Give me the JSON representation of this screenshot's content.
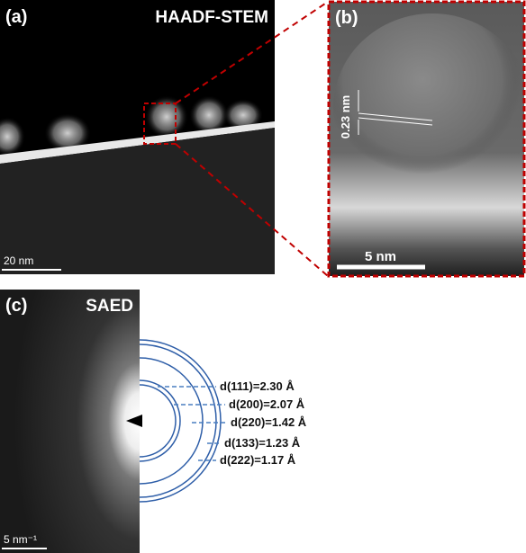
{
  "panels": {
    "a": {
      "label": "(a)",
      "title": "HAADF-STEM",
      "scale_bar": "20 nm"
    },
    "b": {
      "label": "(b)",
      "annotation": "0.23 nm",
      "scale_bar": "5 nm"
    },
    "c": {
      "label": "(c)",
      "title": "SAED",
      "scale_bar": "5 nm⁻¹",
      "rings": [
        "d(111)=2.30 Å",
        "d(200)=2.07 Å",
        "d(220)=1.42 Å",
        "d(133)=1.23 Å",
        "d(222)=1.17 Å"
      ]
    }
  }
}
